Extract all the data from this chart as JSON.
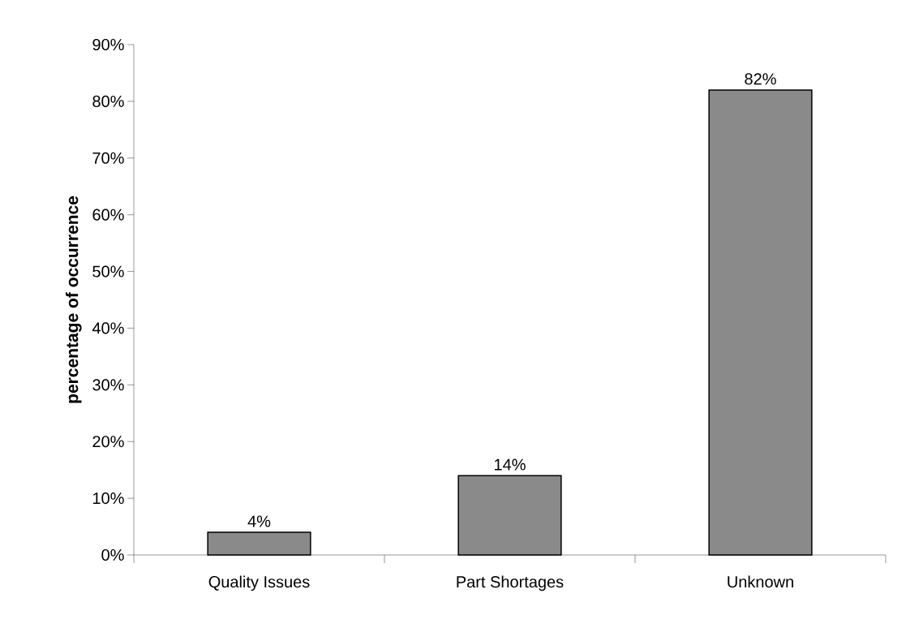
{
  "chart_data": {
    "type": "bar",
    "ylabel": "percentage of occurrence",
    "categories": [
      "Quality Issues",
      "Part Shortages",
      "Unknown"
    ],
    "values": [
      4,
      14,
      82
    ],
    "value_labels": [
      "4%",
      "14%",
      "82%"
    ],
    "color": "#8a8a8a",
    "ylim": [
      0,
      90
    ],
    "yticks": [
      {
        "value": 0,
        "label": "0%"
      },
      {
        "value": 10,
        "label": "10%"
      },
      {
        "value": 20,
        "label": "20%"
      },
      {
        "value": 30,
        "label": "30%"
      },
      {
        "value": 40,
        "label": "40%"
      },
      {
        "value": 50,
        "label": "50%"
      },
      {
        "value": 60,
        "label": "60%"
      },
      {
        "value": 70,
        "label": "70%"
      },
      {
        "value": 80,
        "label": "80%"
      },
      {
        "value": 90,
        "label": "90%"
      }
    ],
    "grid": false
  }
}
